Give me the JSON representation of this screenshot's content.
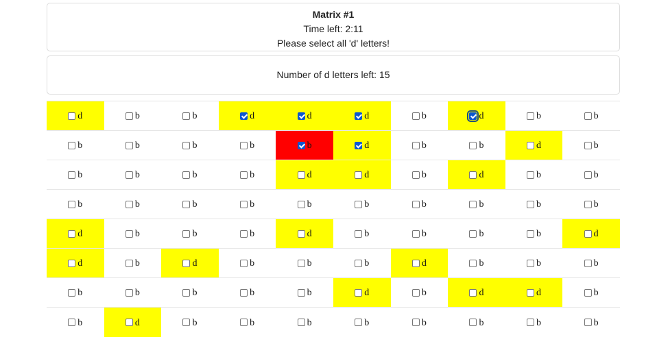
{
  "header": {
    "title": "Matrix #1",
    "time_left": "Time left: 2:11",
    "instruction": "Please select all 'd' letters!"
  },
  "counter": {
    "text": "Number of d letters left: 15"
  },
  "matrix": {
    "rows": [
      [
        {
          "l": "d",
          "c": false
        },
        {
          "l": "b",
          "c": false
        },
        {
          "l": "b",
          "c": false
        },
        {
          "l": "d",
          "c": true
        },
        {
          "l": "d",
          "c": true
        },
        {
          "l": "d",
          "c": true
        },
        {
          "l": "b",
          "c": false
        },
        {
          "l": "d",
          "c": true,
          "f": true
        },
        {
          "l": "b",
          "c": false
        },
        {
          "l": "b",
          "c": false
        }
      ],
      [
        {
          "l": "b",
          "c": false
        },
        {
          "l": "b",
          "c": false
        },
        {
          "l": "b",
          "c": false
        },
        {
          "l": "b",
          "c": false
        },
        {
          "l": "b",
          "c": true,
          "wrong": true
        },
        {
          "l": "d",
          "c": true
        },
        {
          "l": "b",
          "c": false
        },
        {
          "l": "b",
          "c": false
        },
        {
          "l": "d",
          "c": false
        },
        {
          "l": "b",
          "c": false
        }
      ],
      [
        {
          "l": "b",
          "c": false
        },
        {
          "l": "b",
          "c": false
        },
        {
          "l": "b",
          "c": false
        },
        {
          "l": "b",
          "c": false
        },
        {
          "l": "d",
          "c": false
        },
        {
          "l": "d",
          "c": false
        },
        {
          "l": "b",
          "c": false
        },
        {
          "l": "d",
          "c": false
        },
        {
          "l": "b",
          "c": false
        },
        {
          "l": "b",
          "c": false
        }
      ],
      [
        {
          "l": "b",
          "c": false
        },
        {
          "l": "b",
          "c": false
        },
        {
          "l": "b",
          "c": false
        },
        {
          "l": "b",
          "c": false
        },
        {
          "l": "b",
          "c": false
        },
        {
          "l": "b",
          "c": false
        },
        {
          "l": "b",
          "c": false
        },
        {
          "l": "b",
          "c": false
        },
        {
          "l": "b",
          "c": false
        },
        {
          "l": "b",
          "c": false
        }
      ],
      [
        {
          "l": "d",
          "c": false
        },
        {
          "l": "b",
          "c": false
        },
        {
          "l": "b",
          "c": false
        },
        {
          "l": "b",
          "c": false
        },
        {
          "l": "d",
          "c": false
        },
        {
          "l": "b",
          "c": false
        },
        {
          "l": "b",
          "c": false
        },
        {
          "l": "b",
          "c": false
        },
        {
          "l": "b",
          "c": false
        },
        {
          "l": "d",
          "c": false
        }
      ],
      [
        {
          "l": "d",
          "c": false
        },
        {
          "l": "b",
          "c": false
        },
        {
          "l": "d",
          "c": false
        },
        {
          "l": "b",
          "c": false
        },
        {
          "l": "b",
          "c": false
        },
        {
          "l": "b",
          "c": false
        },
        {
          "l": "d",
          "c": false
        },
        {
          "l": "b",
          "c": false
        },
        {
          "l": "b",
          "c": false
        },
        {
          "l": "b",
          "c": false
        }
      ],
      [
        {
          "l": "b",
          "c": false
        },
        {
          "l": "b",
          "c": false
        },
        {
          "l": "b",
          "c": false
        },
        {
          "l": "b",
          "c": false
        },
        {
          "l": "b",
          "c": false
        },
        {
          "l": "d",
          "c": false
        },
        {
          "l": "b",
          "c": false
        },
        {
          "l": "d",
          "c": false
        },
        {
          "l": "d",
          "c": false
        },
        {
          "l": "b",
          "c": false
        }
      ],
      [
        {
          "l": "b",
          "c": false
        },
        {
          "l": "d",
          "c": false
        },
        {
          "l": "b",
          "c": false
        },
        {
          "l": "b",
          "c": false
        },
        {
          "l": "b",
          "c": false
        },
        {
          "l": "b",
          "c": false
        },
        {
          "l": "b",
          "c": false
        },
        {
          "l": "b",
          "c": false
        },
        {
          "l": "b",
          "c": false
        },
        {
          "l": "b",
          "c": false
        }
      ]
    ]
  },
  "colors": {
    "target": "#ffff00",
    "wrong": "#ff0000",
    "checkbox_checked": "#0b57d0"
  }
}
